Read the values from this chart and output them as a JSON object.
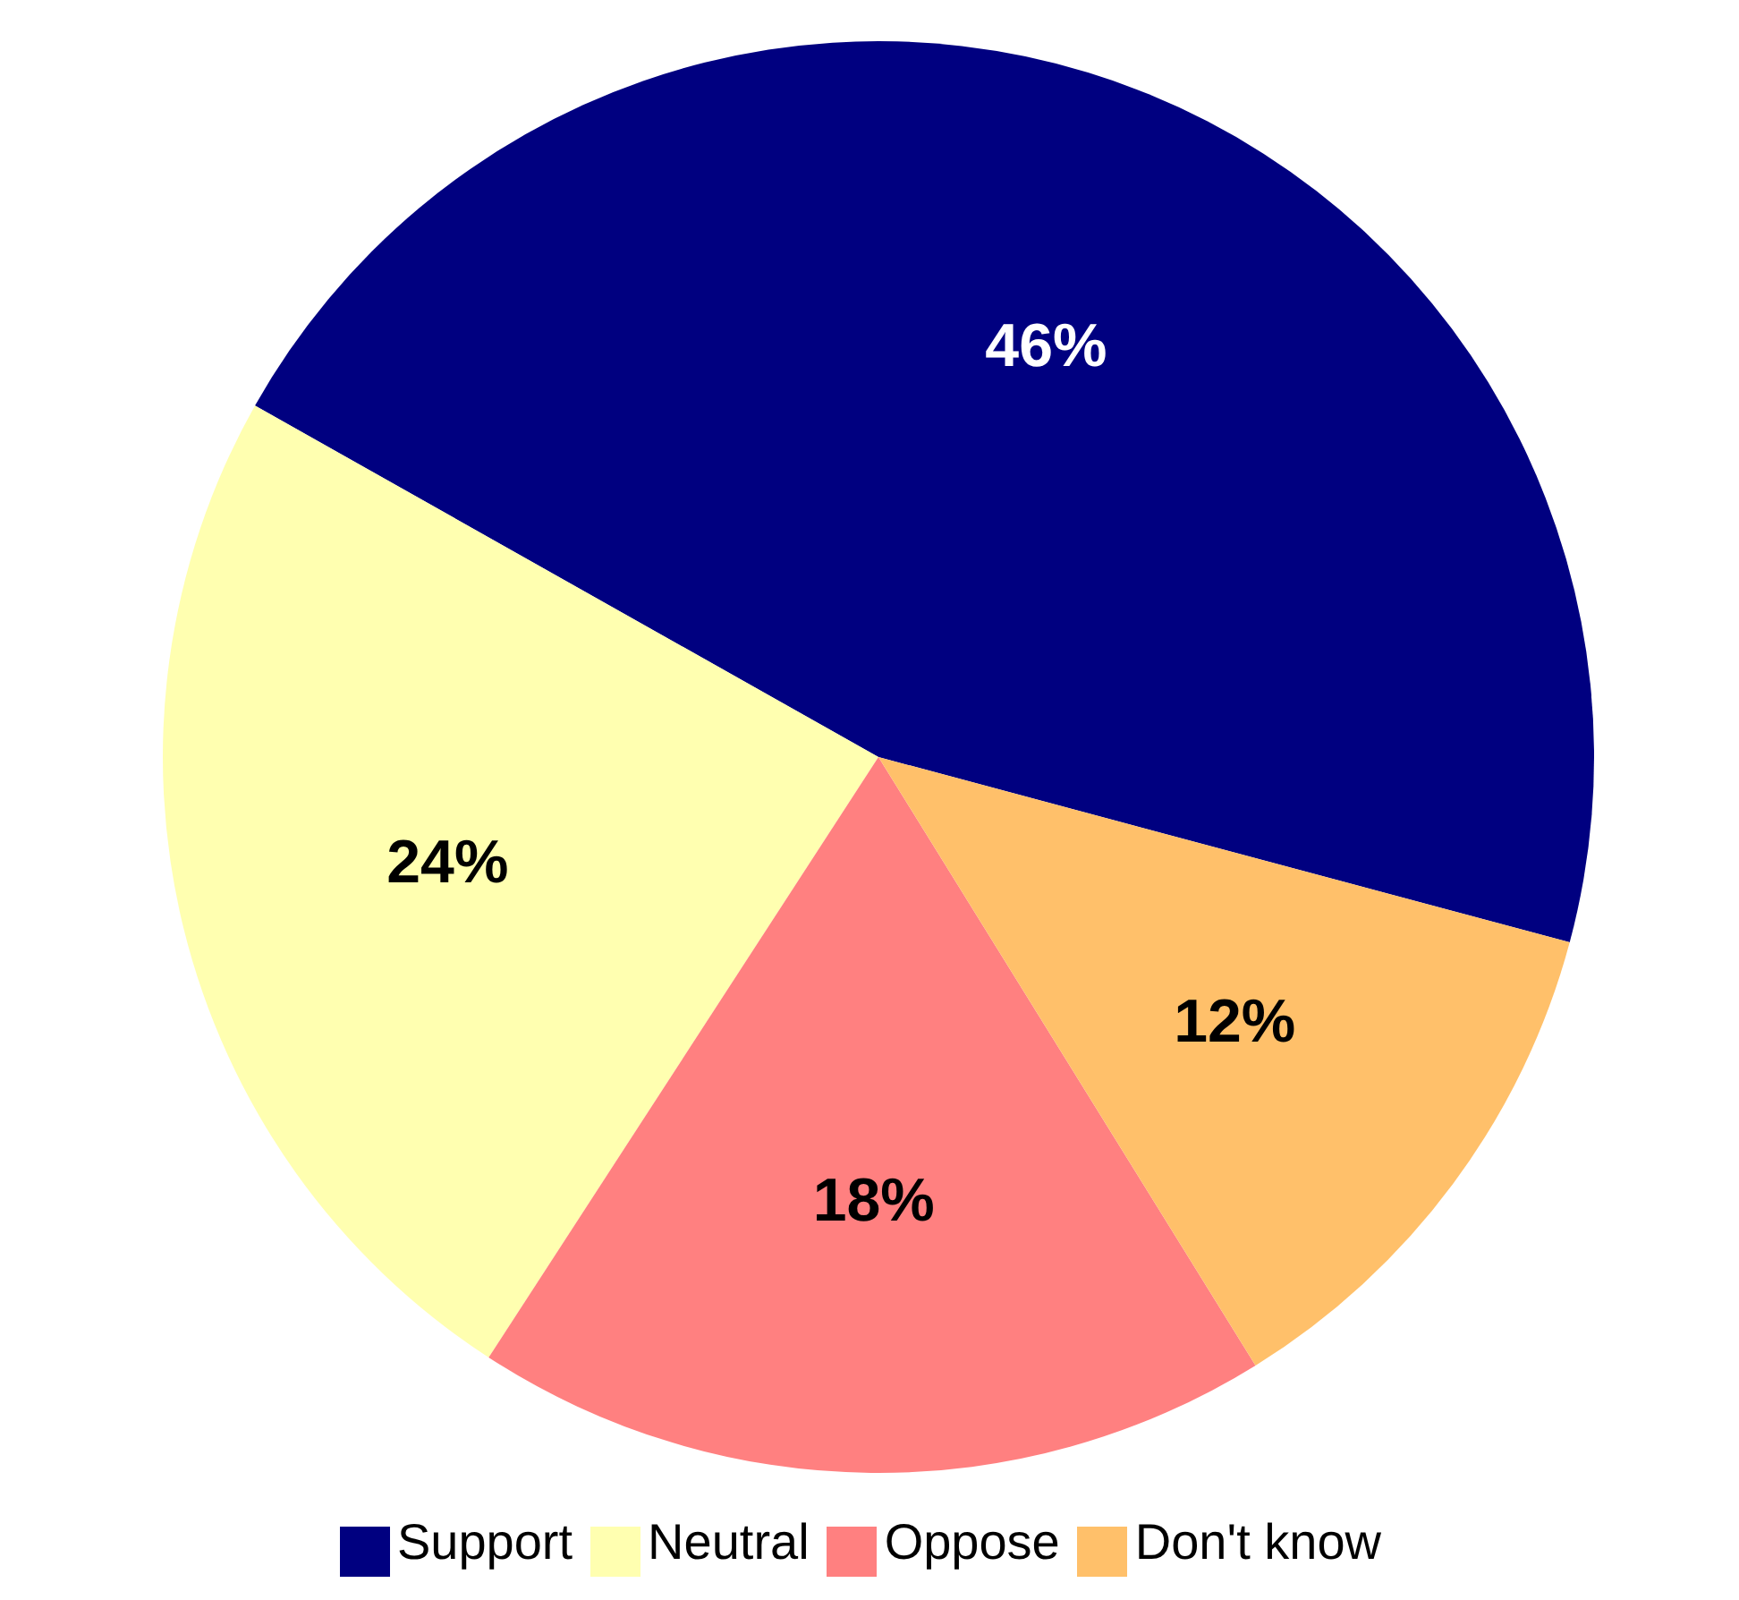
{
  "chart_data": {
    "type": "pie",
    "categories": [
      "Support",
      "Neutral",
      "Oppose",
      "Don't know"
    ],
    "values": [
      46,
      24,
      18,
      12
    ],
    "colors": [
      "#000080",
      "#ffffb0",
      "#ff8080",
      "#ffc06a"
    ],
    "value_labels": [
      "46%",
      "24%",
      "18%",
      "12%"
    ],
    "legend": "bottom"
  }
}
